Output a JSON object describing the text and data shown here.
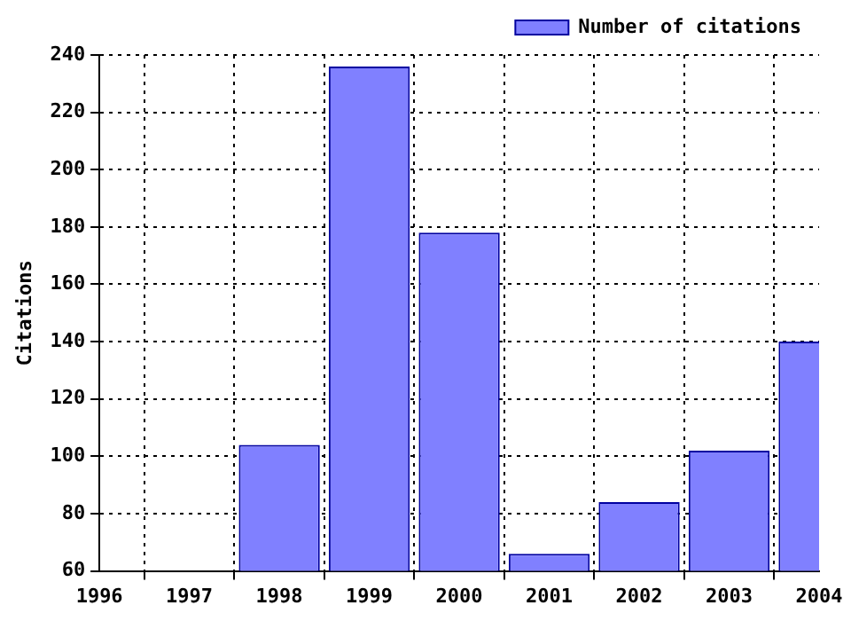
{
  "chart_data": {
    "type": "bar",
    "ylabel": "Citations",
    "x": [
      1998,
      1999,
      2000,
      2001,
      2002,
      2003,
      2004
    ],
    "series": [
      {
        "name": "Number of citations",
        "color": "#8080ff",
        "values": [
          104,
          236,
          178,
          66,
          84,
          102,
          140
        ]
      }
    ],
    "xlim": [
      1996,
      2004
    ],
    "xticks": [
      1996,
      1997,
      1998,
      1999,
      2000,
      2001,
      2002,
      2003,
      2004
    ],
    "ylim": [
      60,
      240
    ],
    "yticks": [
      60,
      80,
      100,
      120,
      140,
      160,
      180,
      200,
      220,
      240
    ],
    "grid": true,
    "legend": "top right"
  }
}
